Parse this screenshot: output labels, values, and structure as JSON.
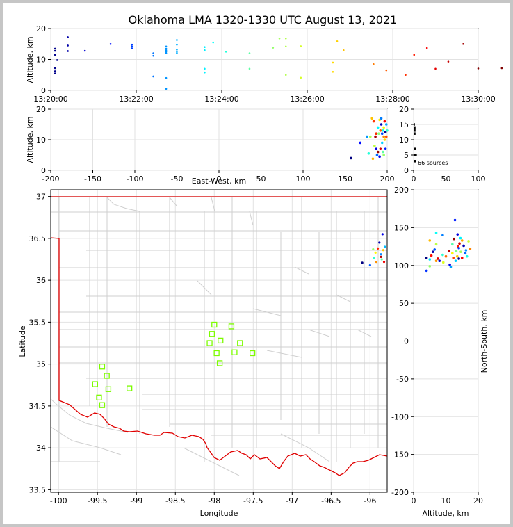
{
  "title": "Oklahoma LMA 1320-1330 UTC August 13, 2021",
  "source_count_label": "66 sources",
  "colors": {
    "state_border": "#e00000",
    "county_lines": "#cfcfcf",
    "stations": "#7cfc00",
    "grid": "#e2e2e2"
  },
  "chart_data": [
    {
      "name": "time-altitude",
      "type": "scatter",
      "xlabel": "",
      "ylabel": "Altitude, km",
      "x_ticks": [
        "13:20:00",
        "13:22:00",
        "13:24:00",
        "13:26:00",
        "13:28:00",
        "13:30:00"
      ],
      "y_ticks": [
        0,
        10,
        20
      ],
      "xlim_minutes": [
        0,
        10
      ],
      "ylim": [
        0,
        20
      ],
      "colormap": "time (blue to red)",
      "points": [
        [
          0.1,
          13.5
        ],
        [
          0.1,
          12.8
        ],
        [
          0.1,
          11.5
        ],
        [
          0.15,
          9.8
        ],
        [
          0.1,
          7.2
        ],
        [
          0.1,
          6.2
        ],
        [
          0.1,
          5.5
        ],
        [
          0.4,
          17.2
        ],
        [
          0.4,
          14.5
        ],
        [
          0.4,
          12.7
        ],
        [
          0.8,
          12.8
        ],
        [
          1.4,
          15.0
        ],
        [
          1.9,
          14.8
        ],
        [
          1.9,
          14.2
        ],
        [
          1.9,
          13.6
        ],
        [
          2.4,
          12.0
        ],
        [
          2.4,
          11.2
        ],
        [
          2.4,
          4.5
        ],
        [
          2.7,
          14.2
        ],
        [
          2.7,
          13.5
        ],
        [
          2.7,
          13.0
        ],
        [
          2.7,
          12.5
        ],
        [
          2.7,
          12.0
        ],
        [
          2.7,
          4.0
        ],
        [
          2.7,
          0.5
        ],
        [
          2.95,
          16.3
        ],
        [
          2.95,
          14.8
        ],
        [
          2.95,
          13.2
        ],
        [
          2.95,
          12.6
        ],
        [
          2.95,
          12.1
        ],
        [
          3.6,
          14.0
        ],
        [
          3.6,
          13.0
        ],
        [
          3.6,
          7.0
        ],
        [
          3.6,
          5.8
        ],
        [
          3.8,
          15.5
        ],
        [
          4.1,
          12.5
        ],
        [
          4.65,
          12.0
        ],
        [
          4.65,
          7.0
        ],
        [
          5.2,
          13.8
        ],
        [
          5.35,
          16.8
        ],
        [
          5.5,
          16.8
        ],
        [
          5.5,
          14.2
        ],
        [
          5.5,
          5.0
        ],
        [
          5.85,
          14.3
        ],
        [
          5.85,
          4.1
        ],
        [
          6.6,
          9.0
        ],
        [
          6.6,
          6.0
        ],
        [
          6.7,
          15.9
        ],
        [
          6.85,
          13.0
        ],
        [
          7.55,
          8.5
        ],
        [
          7.85,
          6.5
        ],
        [
          8.3,
          5.0
        ],
        [
          8.5,
          11.5
        ],
        [
          8.8,
          13.7
        ],
        [
          9.0,
          7.0
        ],
        [
          9.3,
          9.3
        ],
        [
          9.65,
          15.0
        ],
        [
          10.0,
          7.1
        ],
        [
          10.55,
          7.2
        ],
        [
          11.0,
          16.0
        ],
        [
          11.95,
          11.5
        ]
      ]
    },
    {
      "name": "east-west-altitude",
      "type": "scatter",
      "xlabel": "East-West, km",
      "ylabel": "Altitude, km",
      "x_ticks": [
        -200,
        -150,
        -100,
        -50,
        0,
        50,
        100,
        150,
        200
      ],
      "y_ticks": [
        0,
        10,
        20
      ],
      "xlim": [
        -200,
        200
      ],
      "ylim": [
        0,
        20
      ],
      "points": [
        [
          157,
          4
        ],
        [
          168,
          9
        ],
        [
          176,
          11
        ],
        [
          178,
          5.5
        ],
        [
          180,
          11
        ],
        [
          182,
          17
        ],
        [
          184,
          16
        ],
        [
          186,
          11
        ],
        [
          187,
          7
        ],
        [
          188,
          5
        ],
        [
          189,
          14
        ],
        [
          190,
          12
        ],
        [
          191,
          16.5
        ],
        [
          192,
          13
        ],
        [
          192,
          7
        ],
        [
          193,
          15
        ],
        [
          194,
          12
        ],
        [
          194,
          9
        ],
        [
          195,
          6
        ],
        [
          196,
          14
        ],
        [
          196,
          11
        ],
        [
          197,
          16
        ],
        [
          198,
          12.5
        ],
        [
          198,
          7
        ],
        [
          199,
          15
        ],
        [
          200,
          13
        ],
        [
          185,
          8
        ],
        [
          183,
          3.8
        ],
        [
          187,
          12
        ],
        [
          189,
          6
        ],
        [
          191,
          4.5
        ],
        [
          193,
          17
        ],
        [
          195,
          13
        ],
        [
          196,
          5
        ],
        [
          197,
          10
        ],
        [
          199,
          11
        ]
      ]
    },
    {
      "name": "histogram",
      "type": "bar",
      "xlim": [
        0,
        100
      ],
      "ylim": [
        0,
        20
      ],
      "x_ticks": [
        0,
        50,
        100
      ],
      "y_ticks": [
        0,
        5,
        10,
        15,
        20
      ]
    },
    {
      "name": "plan-view-map",
      "type": "scatter",
      "xlabel": "Longitude",
      "ylabel": "Latitude",
      "x_ticks": [
        -100.0,
        -99.5,
        -99.0,
        -98.5,
        -98.0,
        -97.5,
        -97.0,
        -96.5,
        -96.0
      ],
      "y_ticks": [
        33.5,
        34.0,
        34.5,
        35.0,
        35.5,
        36.0,
        36.5,
        37.0
      ],
      "xlim": [
        -100.1,
        -95.78
      ],
      "ylim": [
        33.47,
        37.08
      ],
      "stations": [
        [
          -98.0,
          35.47
        ],
        [
          -97.78,
          35.45
        ],
        [
          -98.03,
          35.36
        ],
        [
          -97.92,
          35.28
        ],
        [
          -98.06,
          35.25
        ],
        [
          -97.67,
          35.25
        ],
        [
          -97.97,
          35.13
        ],
        [
          -97.74,
          35.14
        ],
        [
          -97.51,
          35.13
        ],
        [
          -97.93,
          35.01
        ],
        [
          -99.44,
          34.97
        ],
        [
          -99.38,
          34.86
        ],
        [
          -99.53,
          34.76
        ],
        [
          -99.09,
          34.71
        ],
        [
          -99.36,
          34.7
        ],
        [
          -99.48,
          34.6
        ],
        [
          -99.44,
          34.51
        ]
      ],
      "points": [
        [
          -96.1,
          36.21
        ],
        [
          -96.0,
          36.18
        ],
        [
          -95.95,
          36.27
        ],
        [
          -95.93,
          36.33
        ],
        [
          -95.9,
          36.38
        ],
        [
          -95.88,
          36.45
        ],
        [
          -95.86,
          36.31
        ],
        [
          -95.85,
          36.25
        ],
        [
          -95.83,
          36.36
        ],
        [
          -95.82,
          36.22
        ],
        [
          -95.84,
          36.55
        ],
        [
          -95.81,
          36.4
        ],
        [
          -95.96,
          36.37
        ],
        [
          -95.92,
          36.22
        ],
        [
          -95.86,
          36.28
        ]
      ]
    },
    {
      "name": "altitude-north-south",
      "type": "scatter",
      "xlabel": "Altitude, km",
      "ylabel": "North-South, km",
      "x_ticks": [
        0,
        10,
        20
      ],
      "y_ticks": [
        -200,
        -150,
        -100,
        -50,
        0,
        50,
        100,
        150,
        200
      ],
      "xlim": [
        0,
        20
      ],
      "ylim": [
        -200,
        200
      ],
      "points": [
        [
          4,
          110
        ],
        [
          4,
          93
        ],
        [
          5,
          108
        ],
        [
          5,
          99
        ],
        [
          5,
          133
        ],
        [
          5.5,
          113
        ],
        [
          6,
          118
        ],
        [
          6.5,
          121
        ],
        [
          7,
          143
        ],
        [
          7,
          128
        ],
        [
          7,
          106
        ],
        [
          7.5,
          109
        ],
        [
          8,
          106
        ],
        [
          9,
          140
        ],
        [
          9,
          114
        ],
        [
          9.2,
          104
        ],
        [
          10,
          112
        ],
        [
          11,
          119
        ],
        [
          11.2,
          101
        ],
        [
          11.5,
          98
        ],
        [
          12,
          128
        ],
        [
          12,
          116
        ],
        [
          12.3,
          110
        ],
        [
          12.5,
          135
        ],
        [
          12.8,
          160
        ],
        [
          13,
          106
        ],
        [
          13.2,
          119
        ],
        [
          13.5,
          112
        ],
        [
          13.8,
          125
        ],
        [
          14,
          109
        ],
        [
          14,
          123
        ],
        [
          14.5,
          136
        ],
        [
          14.6,
          118
        ],
        [
          15,
          133
        ],
        [
          15,
          110
        ],
        [
          15.5,
          126
        ],
        [
          16,
          116
        ],
        [
          16.5,
          112
        ],
        [
          17,
          132
        ],
        [
          17.5,
          122
        ],
        [
          14.2,
          129
        ],
        [
          13.6,
          141
        ],
        [
          16.2,
          120
        ]
      ]
    }
  ]
}
